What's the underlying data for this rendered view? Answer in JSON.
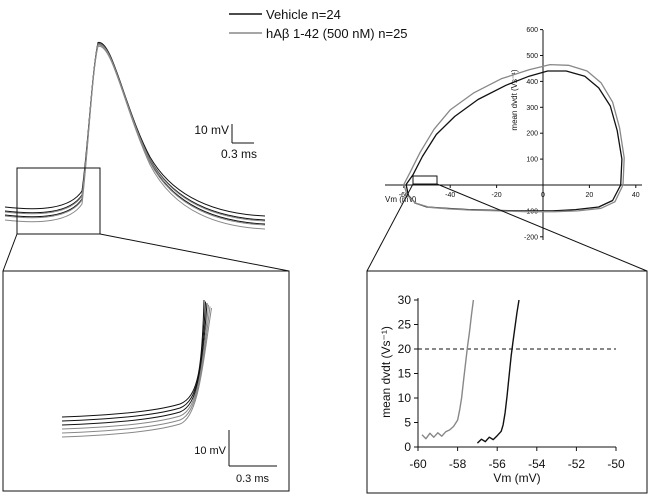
{
  "legend": {
    "entries": [
      {
        "label": "Vehicle n=24",
        "color": "#111111"
      },
      {
        "label": "hAβ 1-42 (500 nM) n=25",
        "color": "#888888"
      }
    ]
  },
  "scalebars": {
    "main": {
      "v": "10 mV",
      "t": "0.3 ms"
    },
    "inset": {
      "v": "10 mV",
      "t": "0.3 ms"
    }
  },
  "phase": {
    "xlabel": "Vm (mV)",
    "ylabel": "mean dvdt (Vs⁻¹)",
    "xticks": [
      "-60",
      "-40",
      "-20",
      "0",
      "20",
      "40"
    ],
    "yticks": [
      "600",
      "500",
      "400",
      "300",
      "200",
      "100",
      "-100",
      "-200"
    ]
  },
  "colors": {
    "vehicle": "#111111",
    "abeta": "#888888",
    "axis": "#111111"
  },
  "chart_data": [
    {
      "type": "line",
      "panel": "action potential traces",
      "title": "",
      "xlabel": "",
      "ylabel": "",
      "series": [
        {
          "name": "Vehicle n=24",
          "traces": 3
        },
        {
          "name": "hAβ 1-42 (500 nM) n=25",
          "traces": 3
        }
      ]
    },
    {
      "type": "line",
      "panel": "action potential foot (expanded inset)",
      "title": "",
      "series": [
        {
          "name": "Vehicle n=24",
          "traces": 3
        },
        {
          "name": "hAβ 1-42 (500 nM) n=25",
          "traces": 3
        }
      ]
    },
    {
      "type": "line",
      "panel": "phase plot",
      "xlabel": "Vm (mV)",
      "ylabel": "mean dvdt (Vs⁻¹)",
      "xlim": [
        -65,
        42
      ],
      "ylim": [
        -200,
        600
      ],
      "series": [
        {
          "name": "Vehicle n=24",
          "x": [
            -59,
            -56,
            -52,
            -46,
            -38,
            -28,
            -16,
            -6,
            2,
            10,
            18,
            24,
            29,
            32,
            34,
            33.5,
            30,
            24,
            14,
            4,
            -8,
            -20,
            -32,
            -42,
            -50,
            -55,
            -58,
            -59
          ],
          "y": [
            2,
            40,
            110,
            195,
            265,
            330,
            385,
            420,
            440,
            440,
            420,
            375,
            305,
            210,
            100,
            0,
            -60,
            -85,
            -95,
            -100,
            -100,
            -98,
            -95,
            -90,
            -85,
            -70,
            -40,
            2
          ]
        },
        {
          "name": "hAβ 1-42 (500 nM) n=25",
          "x": [
            -60,
            -57.5,
            -53,
            -47,
            -40,
            -30,
            -18,
            -6,
            3,
            11,
            19,
            25,
            30,
            33,
            35,
            34.5,
            31,
            25,
            15,
            5,
            -7,
            -19,
            -31,
            -41,
            -49,
            -55,
            -58.5,
            -60
          ],
          "y": [
            2,
            45,
            125,
            215,
            290,
            355,
            410,
            445,
            465,
            462,
            440,
            395,
            320,
            220,
            105,
            0,
            -65,
            -90,
            -100,
            -103,
            -103,
            -100,
            -97,
            -92,
            -86,
            -70,
            -40,
            2
          ]
        }
      ]
    },
    {
      "type": "line",
      "panel": "phase plot threshold inset",
      "xlabel": "Vm (mV)",
      "ylabel": "mean dvdt (Vs⁻¹)",
      "xlim": [
        -60,
        -50
      ],
      "ylim": [
        0,
        30
      ],
      "xticks": [
        "-60",
        "-58",
        "-56",
        "-54",
        "-52",
        "-50"
      ],
      "yticks": [
        "0",
        "5",
        "10",
        "15",
        "20",
        "25",
        "30"
      ],
      "threshold": 20,
      "series": [
        {
          "name": "hAβ 1-42 (500 nM) n=25",
          "x": [
            -59.8,
            -59.6,
            -59.4,
            -59.2,
            -59.0,
            -58.8,
            -58.6,
            -58.4,
            -58.2,
            -58.0,
            -57.9,
            -57.8,
            -57.7,
            -57.6,
            -57.5,
            -57.4,
            -57.3,
            -57.2
          ],
          "y": [
            2.5,
            1.7,
            2.8,
            2.0,
            2.9,
            2.2,
            3.1,
            3.5,
            4.2,
            5.5,
            7.5,
            10,
            13.5,
            17,
            20.5,
            23.5,
            27,
            30
          ]
        },
        {
          "name": "Vehicle n=24",
          "x": [
            -57.0,
            -56.8,
            -56.6,
            -56.4,
            -56.2,
            -56.0,
            -55.8,
            -55.7,
            -55.6,
            -55.5,
            -55.4,
            -55.3,
            -55.2,
            -55.1,
            -55.0,
            -54.9
          ],
          "y": [
            0.8,
            1.6,
            1.1,
            2.0,
            1.5,
            2.3,
            3.2,
            4.5,
            7.0,
            10.5,
            14.5,
            18.5,
            21.5,
            24.5,
            27.5,
            30
          ]
        }
      ]
    }
  ]
}
